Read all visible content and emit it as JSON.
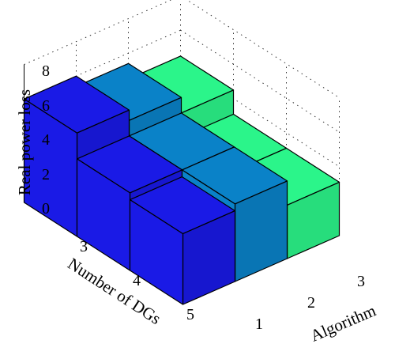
{
  "chart_data": {
    "type": "bar3d",
    "title": "",
    "zlabel": "Real power loss",
    "ylabel": "Number of DGs",
    "xlabel": "Algorithm",
    "zlim": [
      0,
      8
    ],
    "z_ticks": [
      "0",
      "2",
      "4",
      "6",
      "8"
    ],
    "x_categories": [
      "1",
      "2",
      "3"
    ],
    "y_categories": [
      "3",
      "4",
      "5"
    ],
    "grid": true,
    "series": [
      {
        "algorithm": "1",
        "color": "#1a1ae6",
        "values": [
          6.0,
          4.5,
          4.1
        ]
      },
      {
        "algorithm": "2",
        "color": "#0a82c8",
        "values": [
          5.4,
          4.5,
          4.5
        ]
      },
      {
        "algorithm": "3",
        "color": "#2bf58a",
        "values": [
          4.5,
          3.1,
          3.1
        ]
      }
    ]
  }
}
